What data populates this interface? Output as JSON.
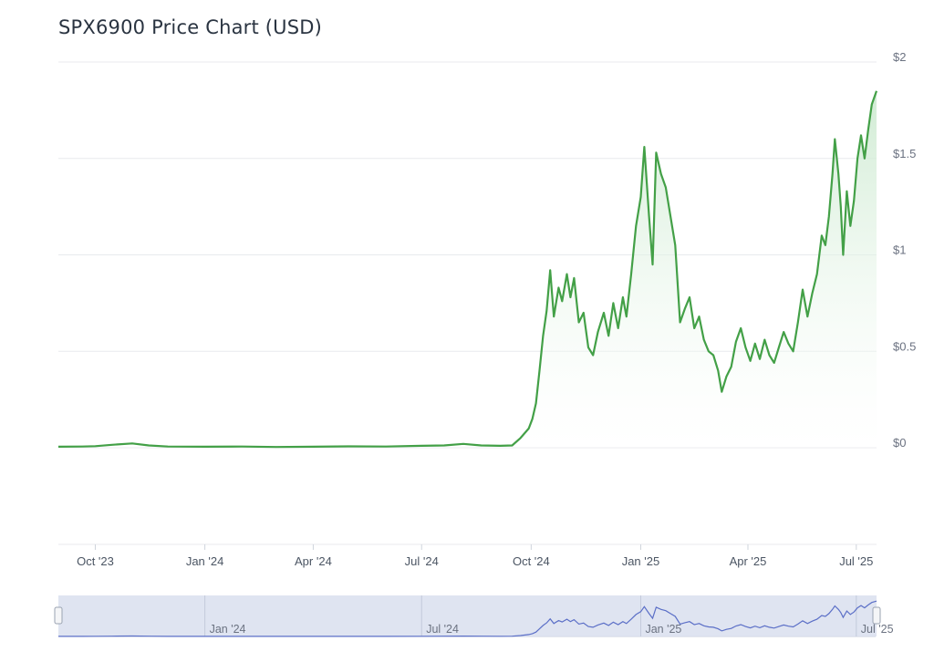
{
  "title": "SPX6900 Price Chart (USD)",
  "colors": {
    "line": "#43a047",
    "fill_top": "#c8e8cc",
    "navigator_line": "#5b6fc7",
    "navigator_mask": "#d9dfee"
  },
  "chart_data": {
    "type": "area",
    "title": "SPX6900 Price Chart (USD)",
    "xlabel": "",
    "ylabel": "",
    "ylim": [
      0,
      2
    ],
    "xlim": [
      "2023-08-31",
      "2025-07-18"
    ],
    "y_ticks": [
      {
        "value": 0,
        "label": "$0"
      },
      {
        "value": 0.5,
        "label": "$0.5"
      },
      {
        "value": 1,
        "label": "$1"
      },
      {
        "value": 1.5,
        "label": "$1.5"
      },
      {
        "value": 2,
        "label": "$2"
      }
    ],
    "x_ticks": [
      {
        "date": "2023-10-01",
        "label": "Oct '23"
      },
      {
        "date": "2024-01-01",
        "label": "Jan '24"
      },
      {
        "date": "2024-04-01",
        "label": "Apr '24"
      },
      {
        "date": "2024-07-01",
        "label": "Jul '24"
      },
      {
        "date": "2024-10-01",
        "label": "Oct '24"
      },
      {
        "date": "2025-01-01",
        "label": "Jan '25"
      },
      {
        "date": "2025-04-01",
        "label": "Apr '25"
      },
      {
        "date": "2025-07-01",
        "label": "Jul '25"
      }
    ],
    "navigator_ticks": [
      {
        "date": "2024-01-01",
        "label": "Jan '24"
      },
      {
        "date": "2024-07-01",
        "label": "Jul '24"
      },
      {
        "date": "2025-01-01",
        "label": "Jan '25"
      },
      {
        "date": "2025-07-01",
        "label": "Jul '25"
      }
    ],
    "grid": true,
    "legend": "none",
    "series": [
      {
        "points": [
          [
            "2023-08-31",
            0.005
          ],
          [
            "2023-09-20",
            0.006
          ],
          [
            "2023-10-01",
            0.008
          ],
          [
            "2023-10-15",
            0.015
          ],
          [
            "2023-11-01",
            0.022
          ],
          [
            "2023-11-15",
            0.012
          ],
          [
            "2023-12-01",
            0.006
          ],
          [
            "2024-01-01",
            0.005
          ],
          [
            "2024-02-01",
            0.006
          ],
          [
            "2024-03-01",
            0.004
          ],
          [
            "2024-04-01",
            0.005
          ],
          [
            "2024-05-01",
            0.007
          ],
          [
            "2024-06-01",
            0.006
          ],
          [
            "2024-07-01",
            0.01
          ],
          [
            "2024-07-20",
            0.012
          ],
          [
            "2024-08-05",
            0.02
          ],
          [
            "2024-08-20",
            0.012
          ],
          [
            "2024-09-05",
            0.01
          ],
          [
            "2024-09-15",
            0.012
          ],
          [
            "2024-09-22",
            0.05
          ],
          [
            "2024-09-29",
            0.1
          ],
          [
            "2024-10-02",
            0.15
          ],
          [
            "2024-10-05",
            0.23
          ],
          [
            "2024-10-08",
            0.4
          ],
          [
            "2024-10-11",
            0.58
          ],
          [
            "2024-10-14",
            0.71
          ],
          [
            "2024-10-17",
            0.92
          ],
          [
            "2024-10-20",
            0.68
          ],
          [
            "2024-10-24",
            0.83
          ],
          [
            "2024-10-27",
            0.76
          ],
          [
            "2024-10-31",
            0.9
          ],
          [
            "2024-11-03",
            0.78
          ],
          [
            "2024-11-06",
            0.88
          ],
          [
            "2024-11-10",
            0.65
          ],
          [
            "2024-11-14",
            0.7
          ],
          [
            "2024-11-18",
            0.52
          ],
          [
            "2024-11-22",
            0.48
          ],
          [
            "2024-11-26",
            0.6
          ],
          [
            "2024-12-01",
            0.7
          ],
          [
            "2024-12-05",
            0.58
          ],
          [
            "2024-12-09",
            0.75
          ],
          [
            "2024-12-13",
            0.62
          ],
          [
            "2024-12-17",
            0.78
          ],
          [
            "2024-12-20",
            0.68
          ],
          [
            "2024-12-24",
            0.9
          ],
          [
            "2024-12-28",
            1.15
          ],
          [
            "2025-01-01",
            1.3
          ],
          [
            "2025-01-04",
            1.56
          ],
          [
            "2025-01-08",
            1.2
          ],
          [
            "2025-01-11",
            0.95
          ],
          [
            "2025-01-14",
            1.53
          ],
          [
            "2025-01-18",
            1.42
          ],
          [
            "2025-01-22",
            1.35
          ],
          [
            "2025-01-26",
            1.2
          ],
          [
            "2025-01-30",
            1.05
          ],
          [
            "2025-02-03",
            0.65
          ],
          [
            "2025-02-07",
            0.72
          ],
          [
            "2025-02-11",
            0.78
          ],
          [
            "2025-02-15",
            0.62
          ],
          [
            "2025-02-19",
            0.68
          ],
          [
            "2025-02-23",
            0.56
          ],
          [
            "2025-02-27",
            0.5
          ],
          [
            "2025-03-03",
            0.48
          ],
          [
            "2025-03-07",
            0.4
          ],
          [
            "2025-03-10",
            0.29
          ],
          [
            "2025-03-14",
            0.37
          ],
          [
            "2025-03-18",
            0.42
          ],
          [
            "2025-03-22",
            0.55
          ],
          [
            "2025-03-26",
            0.62
          ],
          [
            "2025-03-30",
            0.52
          ],
          [
            "2025-04-03",
            0.45
          ],
          [
            "2025-04-07",
            0.54
          ],
          [
            "2025-04-11",
            0.46
          ],
          [
            "2025-04-15",
            0.56
          ],
          [
            "2025-04-19",
            0.48
          ],
          [
            "2025-04-23",
            0.44
          ],
          [
            "2025-04-27",
            0.52
          ],
          [
            "2025-05-01",
            0.6
          ],
          [
            "2025-05-05",
            0.54
          ],
          [
            "2025-05-09",
            0.5
          ],
          [
            "2025-05-13",
            0.65
          ],
          [
            "2025-05-17",
            0.82
          ],
          [
            "2025-05-21",
            0.68
          ],
          [
            "2025-05-25",
            0.8
          ],
          [
            "2025-05-29",
            0.9
          ],
          [
            "2025-06-02",
            1.1
          ],
          [
            "2025-06-05",
            1.05
          ],
          [
            "2025-06-08",
            1.2
          ],
          [
            "2025-06-11",
            1.42
          ],
          [
            "2025-06-13",
            1.6
          ],
          [
            "2025-06-16",
            1.42
          ],
          [
            "2025-06-18",
            1.25
          ],
          [
            "2025-06-20",
            1.0
          ],
          [
            "2025-06-23",
            1.33
          ],
          [
            "2025-06-26",
            1.15
          ],
          [
            "2025-06-29",
            1.28
          ],
          [
            "2025-07-02",
            1.5
          ],
          [
            "2025-07-05",
            1.62
          ],
          [
            "2025-07-08",
            1.5
          ],
          [
            "2025-07-11",
            1.65
          ],
          [
            "2025-07-14",
            1.78
          ],
          [
            "2025-07-18",
            1.85
          ]
        ]
      }
    ]
  }
}
